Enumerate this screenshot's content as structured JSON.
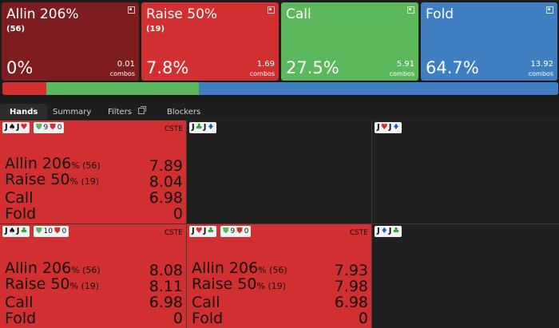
{
  "actions": [
    {
      "id": "allin",
      "name": "Allin 206%",
      "sub": "(56)",
      "pct": "0%",
      "combos": "0.01",
      "combos_label": "combos"
    },
    {
      "id": "raise",
      "name": "Raise 50%",
      "sub": "(19)",
      "pct": "7.8%",
      "combos": "1.69",
      "combos_label": "combos"
    },
    {
      "id": "call",
      "name": "Call",
      "sub": "",
      "pct": "27.5%",
      "combos": "5.91",
      "combos_label": "combos"
    },
    {
      "id": "fold",
      "name": "Fold",
      "sub": "",
      "pct": "64.7%",
      "combos": "13.92",
      "combos_label": "combos"
    }
  ],
  "strategy_bar": [
    {
      "action": "Allin",
      "value": 0.0005,
      "color": "#7e1d1f"
    },
    {
      "action": "Raise",
      "value": 0.078,
      "color": "#d12f30"
    },
    {
      "action": "Call",
      "value": 0.275,
      "color": "#5cb85c"
    },
    {
      "action": "Fold",
      "value": 0.647,
      "color": "#3f7fc1"
    }
  ],
  "tabs": {
    "hands": "Hands",
    "summary": "Summary",
    "filters": "Filters",
    "blockers": "Blockers"
  },
  "cells": [
    {
      "hand": [
        "J",
        "s",
        "J",
        "h"
      ],
      "eq": "9",
      "risk": "0",
      "tag": "CSTE",
      "rows": [
        {
          "label": "Allin 206",
          "extra": "% (56)",
          "value": "7.89"
        },
        {
          "label": "Raise 50",
          "extra": "% (19)",
          "value": "8.04"
        },
        {
          "label": "Call",
          "extra": "",
          "value": "6.98"
        },
        {
          "label": "Fold",
          "extra": "",
          "value": "0"
        }
      ]
    },
    {
      "hand": [
        "J",
        "c",
        "J",
        "d"
      ]
    },
    {
      "hand": [
        "J",
        "h",
        "J",
        "d"
      ]
    },
    {
      "hand": [
        "J",
        "s",
        "J",
        "c"
      ],
      "eq": "10",
      "risk": "0",
      "tag": "CSTE",
      "rows": [
        {
          "label": "Allin 206",
          "extra": "% (56)",
          "value": "8.08"
        },
        {
          "label": "Raise 50",
          "extra": "% (19)",
          "value": "8.11"
        },
        {
          "label": "Call",
          "extra": "",
          "value": "6.98"
        },
        {
          "label": "Fold",
          "extra": "",
          "value": "0"
        }
      ]
    },
    {
      "hand": [
        "J",
        "h",
        "J",
        "c"
      ],
      "eq": "9",
      "risk": "0",
      "tag": "CSTE",
      "rows": [
        {
          "label": "Allin 206",
          "extra": "% (56)",
          "value": "7.93"
        },
        {
          "label": "Raise 50",
          "extra": "% (19)",
          "value": "7.98"
        },
        {
          "label": "Call",
          "extra": "",
          "value": "6.98"
        },
        {
          "label": "Fold",
          "extra": "",
          "value": "0"
        }
      ]
    },
    {
      "hand": [
        "J",
        "d",
        "J",
        "c"
      ]
    }
  ],
  "suit_glyphs": {
    "s": "♠",
    "h": "♥",
    "d": "♦",
    "c": "♣"
  }
}
